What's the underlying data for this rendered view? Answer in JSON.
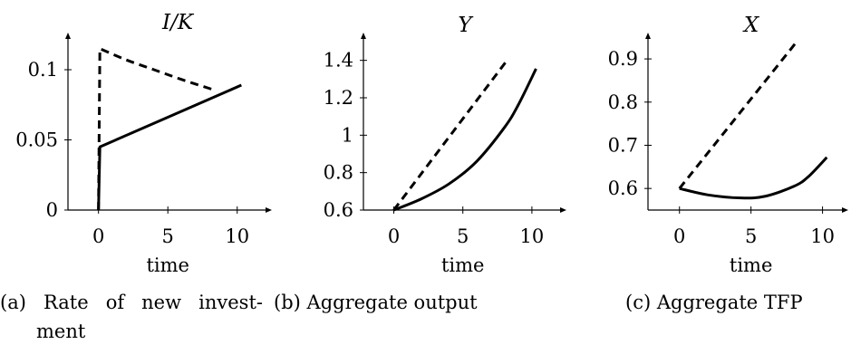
{
  "chart_data": [
    {
      "type": "line",
      "title": "I/K",
      "xlabel": "time",
      "ylabel": "",
      "xlim": [
        -2.2,
        12.5
      ],
      "ylim": [
        0,
        0.12
      ],
      "xticks": [
        0,
        5,
        10
      ],
      "xtick_labels": [
        "0",
        "5",
        "10"
      ],
      "yticks": [
        0,
        0.05,
        0.1
      ],
      "ytick_labels": [
        "0",
        "0.05",
        "0.1"
      ],
      "series": [
        {
          "style": "solid",
          "x": [
            0,
            0.1,
            10.3
          ],
          "y": [
            0,
            0.045,
            0.089
          ]
        },
        {
          "style": "dashed",
          "x": [
            0,
            0.1,
            2,
            4,
            6,
            8.2
          ],
          "y": [
            0,
            0.115,
            0.107,
            0.1,
            0.093,
            0.086
          ]
        }
      ],
      "caption_marker": "(a)",
      "caption_line1": [
        "Rate",
        "of",
        "new",
        "invest-"
      ],
      "caption_line2": "ment"
    },
    {
      "type": "line",
      "title": "Y",
      "xlabel": "time",
      "ylabel": "",
      "xlim": [
        -2.2,
        12.5
      ],
      "ylim": [
        0.6,
        1.5
      ],
      "xticks": [
        0,
        5,
        10
      ],
      "xtick_labels": [
        "0",
        "5",
        "10"
      ],
      "yticks": [
        0.6,
        0.8,
        1,
        1.2,
        1.4
      ],
      "ytick_labels": [
        "0.6",
        "0.8",
        "1",
        "1.2",
        "1.4"
      ],
      "series": [
        {
          "style": "solid",
          "x": [
            0,
            2,
            4,
            6,
            8,
            9,
            10.3
          ],
          "y": [
            0.6,
            0.66,
            0.74,
            0.86,
            1.04,
            1.16,
            1.355
          ]
        },
        {
          "style": "dashed",
          "x": [
            0,
            8.2
          ],
          "y": [
            0.6,
            1.4
          ]
        }
      ],
      "caption_marker": "(b)",
      "caption_text": "Aggregate output"
    },
    {
      "type": "line",
      "title": "X",
      "xlabel": "time",
      "ylabel": "",
      "xlim": [
        -2.2,
        11.8
      ],
      "ylim": [
        0.55,
        0.94
      ],
      "xticks": [
        0,
        5,
        10
      ],
      "xtick_labels": [
        "0",
        "5",
        "10"
      ],
      "yticks": [
        0.6,
        0.7,
        0.8,
        0.9
      ],
      "ytick_labels": [
        "0.6",
        "0.7",
        "0.8",
        "0.9"
      ],
      "series": [
        {
          "style": "solid",
          "x": [
            0,
            2,
            4.3,
            6,
            8,
            9,
            10.3
          ],
          "y": [
            0.6,
            0.585,
            0.578,
            0.582,
            0.605,
            0.627,
            0.672
          ]
        },
        {
          "style": "dashed",
          "x": [
            0,
            8.2
          ],
          "y": [
            0.6,
            0.94
          ]
        }
      ],
      "caption_marker": "(c)",
      "caption_text": "Aggregate TFP"
    }
  ]
}
